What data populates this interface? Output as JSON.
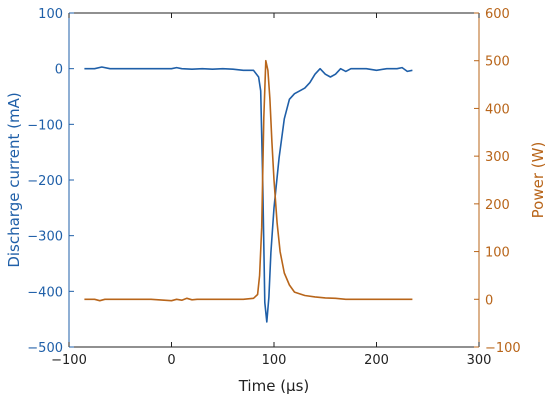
{
  "chart_data": {
    "type": "line",
    "xlabel": "Time (µs)",
    "xlim": [
      -100,
      300
    ],
    "xticks": [
      -100,
      0,
      100,
      200,
      300
    ],
    "left_axis": {
      "label": "Discharge current (mA)",
      "ylim": [
        -500,
        100
      ],
      "ticks": [
        -500,
        -400,
        -300,
        -200,
        -100,
        0,
        100
      ],
      "color": "#1f5fa8"
    },
    "right_axis": {
      "label": "Power (W)",
      "ylim": [
        -100,
        600
      ],
      "ticks": [
        -100,
        0,
        100,
        200,
        300,
        400,
        500,
        600
      ],
      "color": "#b8651a"
    },
    "grid": false,
    "series": [
      {
        "axis": "left",
        "color": "#1f5fa8",
        "x": [
          -85,
          -75,
          -68,
          -60,
          -40,
          -20,
          0,
          5,
          10,
          20,
          30,
          40,
          50,
          60,
          70,
          80,
          85,
          87,
          89,
          91,
          93,
          95,
          97,
          100,
          105,
          110,
          115,
          120,
          125,
          130,
          135,
          140,
          145,
          150,
          155,
          160,
          165,
          170,
          175,
          180,
          190,
          200,
          210,
          220,
          225,
          230,
          235
        ],
        "y": [
          0,
          0,
          3,
          0,
          0,
          0,
          0,
          2,
          0,
          -1,
          0,
          -1,
          0,
          -1,
          -3,
          -3,
          -15,
          -40,
          -200,
          -420,
          -455,
          -410,
          -330,
          -250,
          -160,
          -90,
          -55,
          -45,
          -40,
          -35,
          -25,
          -10,
          0,
          -10,
          -15,
          -10,
          0,
          -5,
          0,
          0,
          0,
          -3,
          0,
          0,
          2,
          -5,
          -3
        ]
      },
      {
        "axis": "right",
        "color": "#b8651a",
        "x": [
          -85,
          -75,
          -70,
          -65,
          -60,
          -40,
          -20,
          0,
          5,
          10,
          15,
          20,
          25,
          30,
          40,
          50,
          60,
          70,
          80,
          84,
          86,
          88,
          90,
          92,
          94,
          96,
          98,
          100,
          103,
          106,
          110,
          115,
          120,
          130,
          140,
          150,
          160,
          170,
          180,
          190,
          200,
          210,
          220,
          230,
          235
        ],
        "y": [
          0,
          0,
          -3,
          0,
          0,
          0,
          0,
          -3,
          0,
          -2,
          2,
          -1,
          0,
          0,
          0,
          0,
          0,
          0,
          2,
          10,
          50,
          150,
          380,
          500,
          480,
          420,
          330,
          250,
          160,
          100,
          55,
          30,
          15,
          8,
          5,
          3,
          2,
          0,
          0,
          0,
          0,
          0,
          0,
          0,
          0
        ]
      }
    ]
  }
}
